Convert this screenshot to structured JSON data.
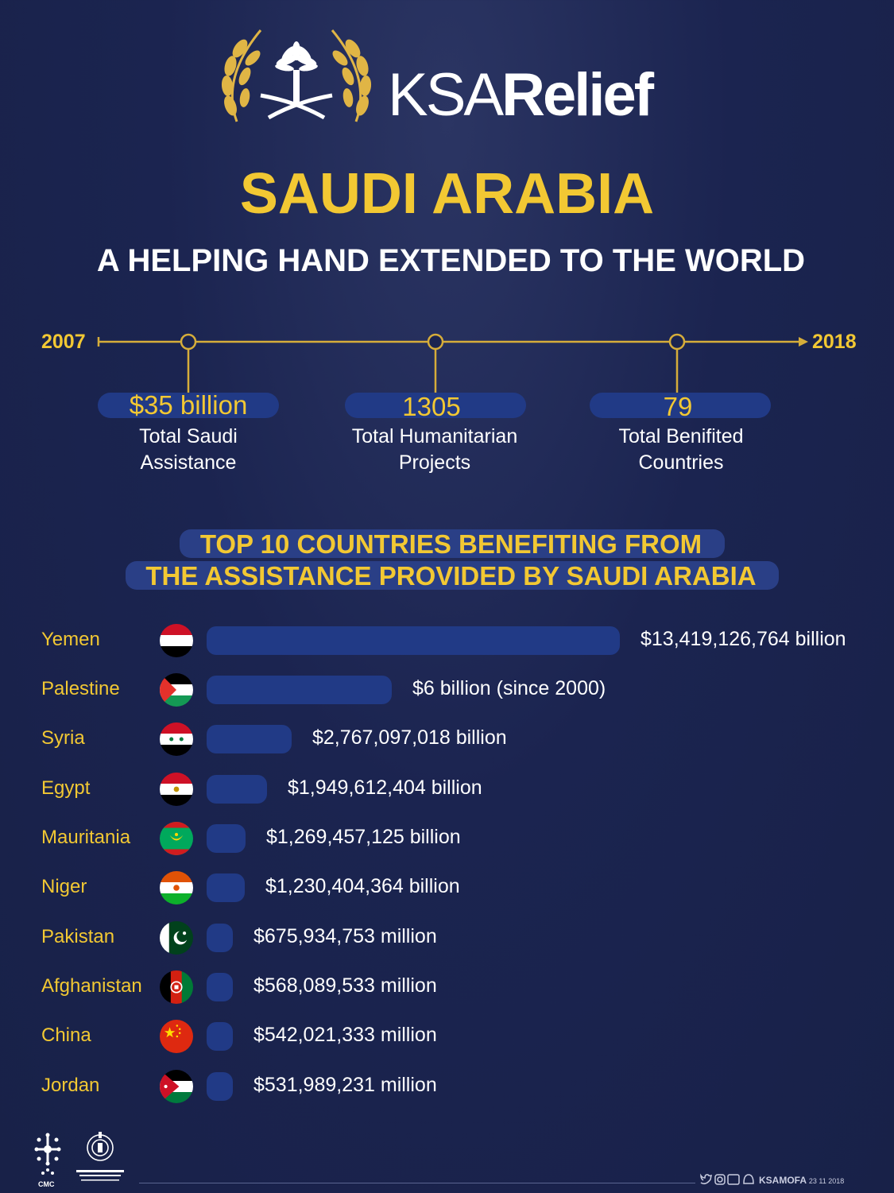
{
  "header": {
    "brand_light": "KSA",
    "brand_bold": "Relief",
    "title": "SAUDI ARABIA",
    "subtitle": "A HELPING HAND EXTENDED TO THE WORLD"
  },
  "timeline": {
    "start": "2007",
    "end": "2018",
    "stats": [
      {
        "value": "$35 billion",
        "label1": "Total Saudi",
        "label2": "Assistance"
      },
      {
        "value": "1305",
        "label1": "Total Humanitarian",
        "label2": "Projects"
      },
      {
        "value": "79",
        "label1": "Total Benifited",
        "label2": "Countries"
      }
    ]
  },
  "section": {
    "line1": "TOP 10 COUNTRIES BENEFITING FROM",
    "line2": "THE ASSISTANCE PROVIDED BY SAUDI ARABIA"
  },
  "chart_data": {
    "type": "bar",
    "orientation": "horizontal",
    "title": "TOP 10 COUNTRIES BENEFITING FROM THE ASSISTANCE PROVIDED BY SAUDI ARABIA",
    "categories": [
      "Yemen",
      "Palestine",
      "Syria",
      "Egypt",
      "Mauritania",
      "Niger",
      "Pakistan",
      "Afghanistan",
      "China",
      "Jordan"
    ],
    "values": [
      13419126764,
      6000000000,
      2767097018,
      1949612404,
      1269457125,
      1230404364,
      675934753,
      568089533,
      542021333,
      531989231
    ],
    "labels": [
      "$13,419,126,764 billion",
      "$6 billion (since 2000)",
      "$2,767,097,018 billion",
      "$1,949,612,404 billion",
      "$1,269,457,125 billion",
      "$1,230,404,364 billion",
      "$675,934,753 million",
      "$568,089,533 million",
      "$542,021,333 million",
      "$531,989,231 million"
    ],
    "flag_icons": [
      "yemen-flag-icon",
      "palestine-flag-icon",
      "syria-flag-icon",
      "egypt-flag-icon",
      "mauritania-flag-icon",
      "niger-flag-icon",
      "pakistan-flag-icon",
      "afghanistan-flag-icon",
      "china-flag-icon",
      "jordan-flag-icon"
    ],
    "bar_color": "#213a86",
    "label_color": "#f2c833",
    "xlabel": "",
    "ylabel": ""
  },
  "footer": {
    "handle": "KSAMOFA",
    "date": "23 11 2018",
    "logo_left": "CMC"
  },
  "colors": {
    "accent": "#f2c833",
    "background": "#1b2450",
    "bar": "#213a86"
  }
}
